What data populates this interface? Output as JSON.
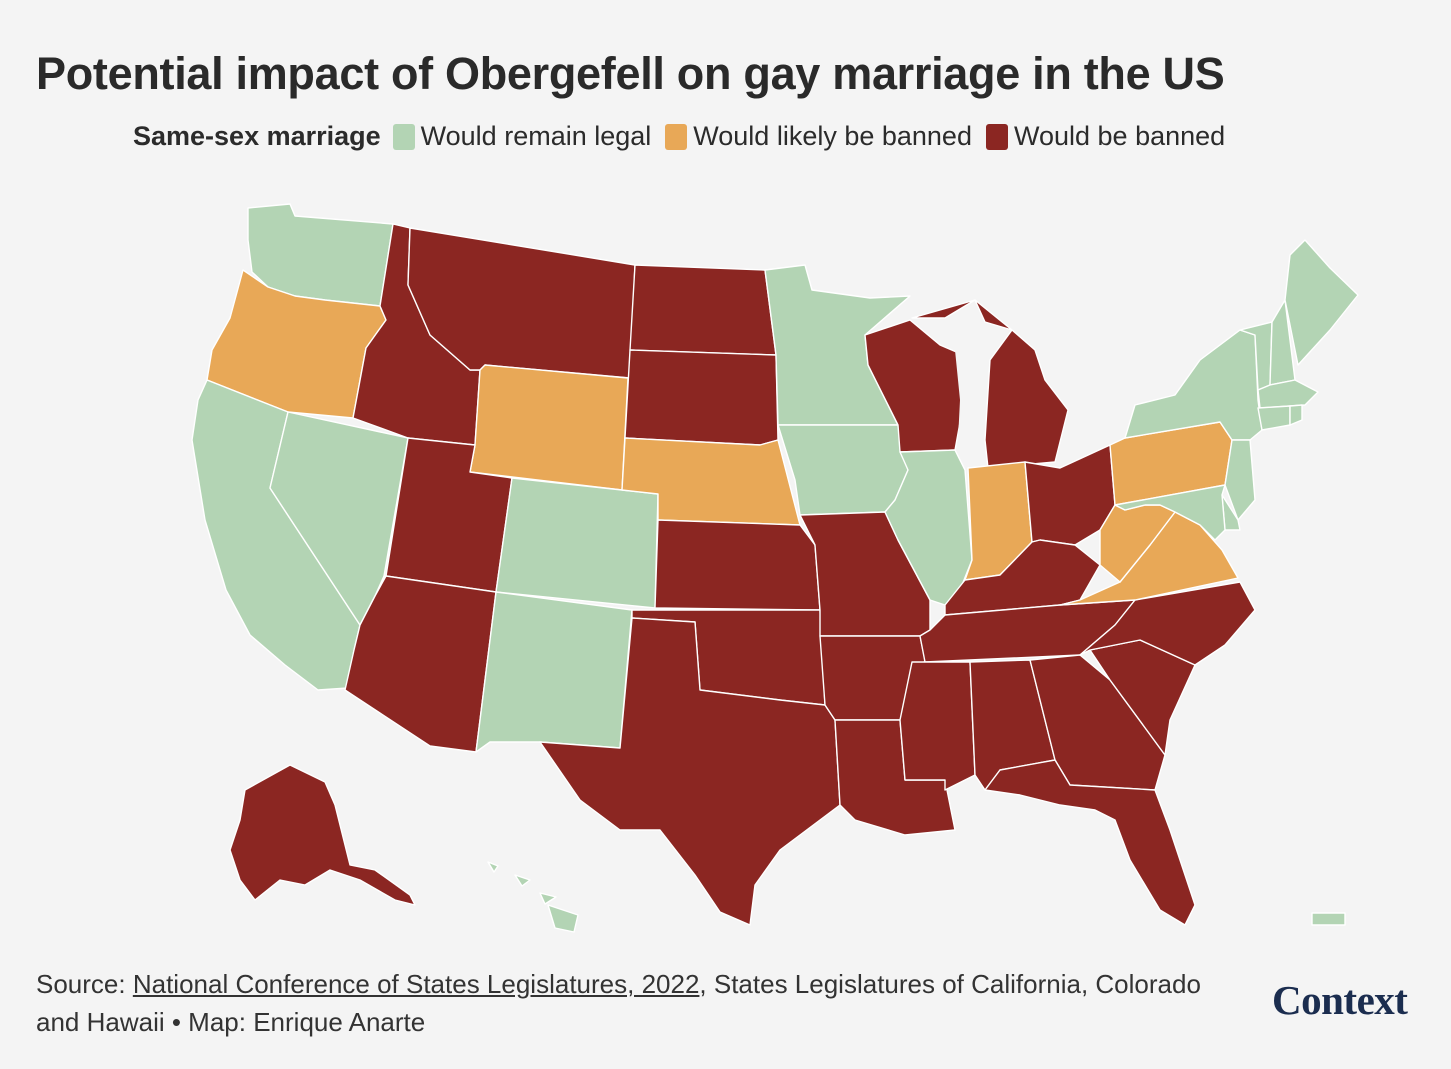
{
  "title": "Potential impact of Obergefell on gay marriage in the US",
  "legend": {
    "heading": "Same-sex marriage",
    "items": [
      {
        "label": "Would remain legal",
        "color": "#b3d4b4"
      },
      {
        "label": "Would likely be banned",
        "color": "#e8a857"
      },
      {
        "label": "Would be banned",
        "color": "#8b2622"
      }
    ]
  },
  "status_colors": {
    "legal": "#b3d4b4",
    "likely": "#e8a857",
    "banned": "#8b2622"
  },
  "states": {
    "WA": "legal",
    "OR": "likely",
    "CA": "legal",
    "NV": "legal",
    "ID": "banned",
    "MT": "banned",
    "WY": "likely",
    "UT": "banned",
    "AZ": "banned",
    "CO": "legal",
    "NM": "legal",
    "ND": "banned",
    "SD": "banned",
    "NE": "likely",
    "KS": "banned",
    "OK": "banned",
    "TX": "banned",
    "MN": "legal",
    "IA": "legal",
    "MO": "banned",
    "AR": "banned",
    "LA": "banned",
    "WI": "banned",
    "IL": "legal",
    "MI": "banned",
    "IN": "likely",
    "OH": "banned",
    "KY": "banned",
    "TN": "banned",
    "MS": "banned",
    "AL": "banned",
    "GA": "banned",
    "FL": "banned",
    "SC": "banned",
    "NC": "banned",
    "VA": "likely",
    "WV": "likely",
    "PA": "likely",
    "NY": "legal",
    "ME": "legal",
    "NH": "legal",
    "VT": "legal",
    "MA": "legal",
    "NJ": "legal",
    "MD": "legal",
    "DE": "legal",
    "CT": "legal",
    "RI": "legal",
    "AK": "banned",
    "HI": "legal",
    "PR": "legal"
  },
  "source": {
    "prefix": "Source: ",
    "link_text": "National Conference of States Legislatures, 2022",
    "suffix": ", States Legislatures of California, Colorado and Hawaii • Map: Enrique Anarte"
  },
  "logo": "Context"
}
